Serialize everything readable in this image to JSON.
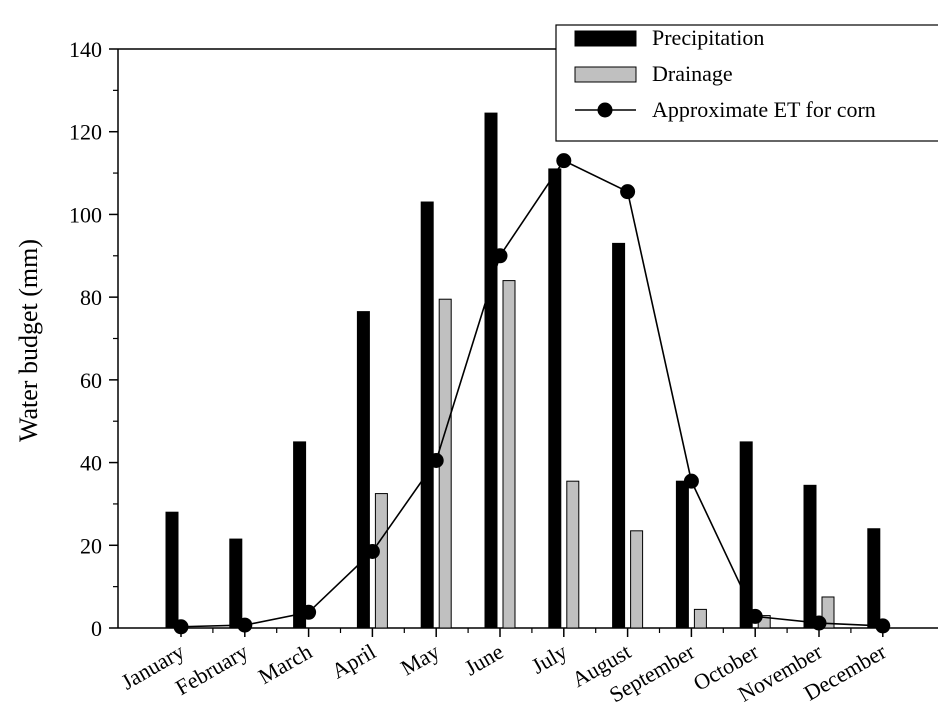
{
  "chart_data": {
    "type": "bar",
    "title": "",
    "xlabel": "",
    "ylabel": "Water budget (mm)",
    "ylim": [
      0,
      140
    ],
    "yticks": [
      0,
      20,
      40,
      60,
      80,
      100,
      120,
      140
    ],
    "categories": [
      "January",
      "February",
      "March",
      "April",
      "May",
      "June",
      "July",
      "August",
      "September",
      "October",
      "November",
      "December"
    ],
    "series": [
      {
        "name": "Precipitation",
        "kind": "bar",
        "color": "#000000",
        "values": [
          28,
          21.5,
          45,
          76.5,
          103,
          124.5,
          111,
          93,
          35.5,
          45,
          34.5,
          24
        ]
      },
      {
        "name": "Drainage",
        "kind": "bar",
        "color": "#c0c0c0",
        "values": [
          0,
          0,
          0,
          32.5,
          79.5,
          84,
          35.5,
          23.5,
          4.5,
          3,
          7.5,
          0
        ]
      },
      {
        "name": "Approximate ET for corn",
        "kind": "line",
        "color": "#000000",
        "values": [
          0.3,
          0.7,
          3.8,
          18.5,
          40.5,
          90,
          113,
          105.5,
          35.5,
          2.8,
          1.2,
          0.5
        ]
      }
    ],
    "legend_position": "top-right",
    "grid": false
  }
}
